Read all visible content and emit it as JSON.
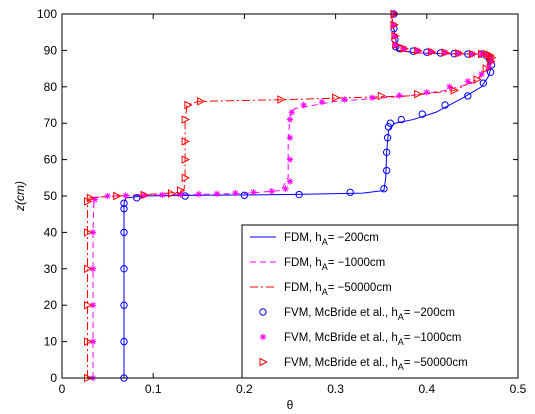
{
  "chart_data": {
    "type": "line",
    "xlabel": "θ",
    "ylabel": "z(cm)",
    "xlim": [
      0,
      0.5
    ],
    "ylim": [
      0,
      100
    ],
    "xticks": [
      "0",
      "0.1",
      "0.2",
      "0.3",
      "0.4",
      "0.5"
    ],
    "yticks": [
      "0",
      "10",
      "20",
      "30",
      "40",
      "50",
      "60",
      "70",
      "80",
      "90",
      "100"
    ],
    "grid": false,
    "legend_position": "bottom-right",
    "series": [
      {
        "name": "FDM, h_A= −200cm",
        "legend_main": "FDM, h",
        "legend_sub": "A",
        "legend_tail": "= −200cm",
        "kind": "line",
        "style": "solid",
        "color": "#0000ff",
        "x": [
          0.068,
          0.068,
          0.068,
          0.068,
          0.07,
          0.09,
          0.15,
          0.25,
          0.33,
          0.353,
          0.355,
          0.356,
          0.358,
          0.365,
          0.385,
          0.41,
          0.44,
          0.46,
          0.468,
          0.47,
          0.469,
          0.465,
          0.458,
          0.44,
          0.39,
          0.368,
          0.366,
          0.364,
          0.362,
          0.361
        ],
        "y": [
          0,
          30,
          46,
          48,
          49.5,
          50,
          50.2,
          50.4,
          50.8,
          51.5,
          55,
          62,
          68,
          70,
          71,
          73,
          77,
          80,
          83,
          85,
          87,
          88.5,
          89,
          89,
          89.3,
          90,
          93,
          96,
          98.5,
          100
        ]
      },
      {
        "name": "FDM, h_A= −1000cm",
        "legend_main": "FDM, h",
        "legend_sub": "A",
        "legend_tail": "= −1000cm",
        "kind": "line",
        "style": "dashed",
        "color": "#ff00ff",
        "x": [
          0.034,
          0.034,
          0.035,
          0.05,
          0.12,
          0.2,
          0.24,
          0.248,
          0.248,
          0.25,
          0.255,
          0.3,
          0.38,
          0.42,
          0.45,
          0.465,
          0.47,
          0.469,
          0.465,
          0.458,
          0.44,
          0.39,
          0.368,
          0.364,
          0.362,
          0.361
        ],
        "y": [
          0,
          40,
          49.5,
          50,
          50.3,
          50.7,
          51.5,
          55,
          65,
          72,
          74,
          76,
          77.5,
          79,
          81,
          84,
          86,
          87.5,
          88.5,
          89,
          89,
          89.3,
          90,
          95,
          98.5,
          100
        ]
      },
      {
        "name": "FDM, h_A= −50000cm",
        "legend_main": "FDM, h",
        "legend_sub": "A",
        "legend_tail": "= −50000cm",
        "kind": "line",
        "style": "dashdot",
        "color": "#ff0000",
        "x": [
          0.028,
          0.028,
          0.03,
          0.06,
          0.1,
          0.128,
          0.134,
          0.135,
          0.135,
          0.137,
          0.15,
          0.25,
          0.38,
          0.43,
          0.455,
          0.466,
          0.47,
          0.469,
          0.465,
          0.458,
          0.44,
          0.39,
          0.368,
          0.364,
          0.362,
          0.361
        ],
        "y": [
          0,
          48,
          49.5,
          50,
          50.5,
          51,
          52,
          55,
          70,
          75,
          76,
          76.5,
          77.5,
          79,
          82,
          85,
          87,
          88,
          88.7,
          89,
          89,
          89.3,
          90,
          95,
          98.5,
          100
        ]
      },
      {
        "name": "FVM, McBride et al., h_A= −200cm",
        "legend_main": "FVM, McBride et al., h",
        "legend_sub": "A",
        "legend_tail": "= −200cm",
        "kind": "marker",
        "marker": "circle",
        "color": "#0000ff",
        "x": [
          0.068,
          0.068,
          0.068,
          0.068,
          0.068,
          0.068,
          0.068,
          0.082,
          0.135,
          0.2,
          0.26,
          0.316,
          0.353,
          0.356,
          0.356,
          0.357,
          0.358,
          0.36,
          0.372,
          0.395,
          0.42,
          0.445,
          0.462,
          0.47,
          0.471,
          0.469,
          0.466,
          0.46,
          0.445,
          0.43,
          0.415,
          0.4,
          0.385,
          0.37,
          0.366,
          0.365,
          0.364,
          0.364
        ],
        "y": [
          0,
          10,
          20,
          30,
          40,
          46.5,
          48,
          49.5,
          50,
          50.2,
          50.4,
          51,
          52,
          57,
          62,
          66,
          69,
          70,
          71,
          72.5,
          75,
          77.5,
          81,
          84,
          86,
          87.5,
          88.5,
          89,
          89,
          89.1,
          89.3,
          89.5,
          89.8,
          90.5,
          91,
          93,
          96,
          100
        ]
      },
      {
        "name": "FVM, McBride et al., h_A= −1000cm",
        "legend_main": "FVM, McBride et al., h",
        "legend_sub": "A",
        "legend_tail": "= −1000cm",
        "kind": "marker",
        "marker": "star",
        "color": "#ff00ff",
        "x": [
          0.034,
          0.034,
          0.034,
          0.034,
          0.034,
          0.036,
          0.05,
          0.07,
          0.09,
          0.11,
          0.13,
          0.15,
          0.17,
          0.19,
          0.21,
          0.23,
          0.245,
          0.25,
          0.25,
          0.25,
          0.25,
          0.252,
          0.265,
          0.285,
          0.31,
          0.34,
          0.37,
          0.4,
          0.425,
          0.445,
          0.46,
          0.468,
          0.471,
          0.469,
          0.466,
          0.46,
          0.45,
          0.435,
          0.42,
          0.405,
          0.39,
          0.375,
          0.366,
          0.365,
          0.364,
          0.364
        ],
        "y": [
          0,
          10,
          20,
          30,
          40,
          49,
          50,
          50.1,
          50.2,
          50.3,
          50.4,
          50.5,
          50.6,
          50.8,
          51,
          51.3,
          52,
          54,
          60,
          66,
          71,
          73,
          75,
          75.8,
          76.5,
          77,
          77.6,
          78.5,
          80,
          81.5,
          83.5,
          85.5,
          87,
          88,
          88.7,
          89,
          89,
          89.2,
          89.4,
          89.6,
          89.9,
          90.5,
          91.5,
          94,
          97,
          100
        ]
      },
      {
        "name": "FVM, McBride et al., h_A= −50000cm",
        "legend_main": "FVM, McBride et al., h",
        "legend_sub": "A",
        "legend_tail": "= −50000cm",
        "kind": "marker",
        "marker": "triangle-right",
        "color": "#ff0000",
        "x": [
          0.028,
          0.028,
          0.028,
          0.028,
          0.028,
          0.028,
          0.031,
          0.06,
          0.09,
          0.12,
          0.13,
          0.135,
          0.135,
          0.135,
          0.135,
          0.138,
          0.152,
          0.24,
          0.3,
          0.35,
          0.39,
          0.43,
          0.455,
          0.465,
          0.47,
          0.471,
          0.469,
          0.466,
          0.46,
          0.45,
          0.435,
          0.42,
          0.405,
          0.39,
          0.375,
          0.366,
          0.365,
          0.364,
          0.364
        ],
        "y": [
          0,
          10,
          20,
          30,
          40,
          48.5,
          49.5,
          50,
          50.3,
          50.7,
          51.5,
          55,
          60,
          65,
          71,
          75,
          76,
          76.5,
          77,
          77.5,
          78,
          79,
          82,
          85,
          87,
          88,
          88.7,
          89,
          89,
          89,
          89.2,
          89.4,
          89.6,
          89.9,
          90.5,
          91.5,
          94,
          97,
          100
        ]
      }
    ]
  }
}
